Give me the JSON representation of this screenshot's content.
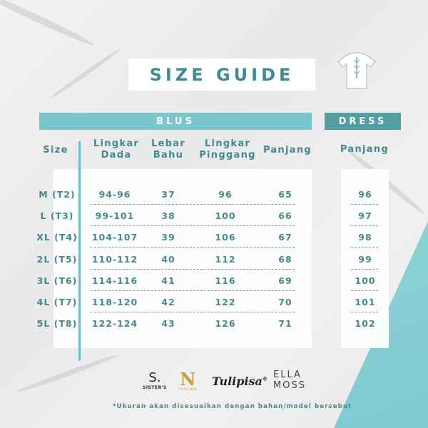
{
  "title": "SIZE GUIDE",
  "sections": {
    "blus": "BLUS",
    "dress": "DRESS"
  },
  "headers": {
    "size": "Size",
    "lingkar_dada": [
      "Lingkar",
      "Dada"
    ],
    "lebar_bahu": [
      "Lebar",
      "Bahu"
    ],
    "lingkar_pinggang": [
      "Lingkar",
      "Pinggang"
    ],
    "panjang": "Panjang",
    "dress_panjang": "Panjang"
  },
  "rows": [
    {
      "size": "M (T2)",
      "dada": "94-96",
      "bahu": "37",
      "pinggang": "96",
      "panjang": "65",
      "dress": "96"
    },
    {
      "size": "L (T3)",
      "dada": "99-101",
      "bahu": "38",
      "pinggang": "100",
      "panjang": "66",
      "dress": "97"
    },
    {
      "size": "XL (T4)",
      "dada": "104-107",
      "bahu": "39",
      "pinggang": "106",
      "panjang": "67",
      "dress": "98"
    },
    {
      "size": "2L (T5)",
      "dada": "110-112",
      "bahu": "40",
      "pinggang": "112",
      "panjang": "68",
      "dress": "99"
    },
    {
      "size": "3L (T6)",
      "dada": "114-116",
      "bahu": "41",
      "pinggang": "116",
      "panjang": "69",
      "dress": "100"
    },
    {
      "size": "4L (T7)",
      "dada": "118-120",
      "bahu": "42",
      "pinggang": "122",
      "panjang": "70",
      "dress": "101"
    },
    {
      "size": "5L (T8)",
      "dada": "122-124",
      "bahu": "43",
      "pinggang": "126",
      "panjang": "71",
      "dress": "102"
    }
  ],
  "logos": {
    "sisters": [
      "S.",
      "SISTER'S"
    ],
    "n": [
      "N",
      "FASHION"
    ],
    "tulipisa": "Tulipisa",
    "tulipisa_mark": "®",
    "ellamoss": [
      "ELLA",
      "MOSS"
    ]
  },
  "note": "*Ukuran akan disesuaikan dengan bahan/model bersebut",
  "colors": {
    "teal_text": "#3f8b8e",
    "blus_bar": "#79c6cc",
    "dress_bar": "#519ea3"
  },
  "icons": {
    "shirt": "shirt-icon"
  }
}
